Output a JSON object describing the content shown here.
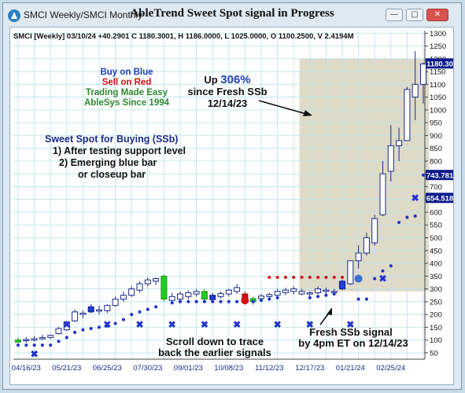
{
  "window": {
    "title": "SMCI Weekly/SMCI Monthly",
    "chart_title": "AbleTrend Sweet Spot signal in Progress",
    "icon": "app-icon",
    "controls": [
      "minimize-icon",
      "restore-icon",
      "close-icon"
    ]
  },
  "header_info": "SMCI [Weekly] 03/10/24  +40.2901  C 1180.3001, H 1186.0000, L 1025.0000, O 1100.2500, V 2.4194M",
  "legend": {
    "buy": "Buy on Blue",
    "sell": "Sell on Red",
    "tagline1": "Trading Made Easy",
    "tagline2": "AbleSys Since 1994"
  },
  "sweet_spot": {
    "title": "Sweet Spot for Buying (SSb)",
    "line1": "1) After testing support level",
    "line2": "2) Emerging blue bar",
    "line3": "or closeup bar"
  },
  "up_note": {
    "prefix": "Up ",
    "pct": "306%",
    "line2": "since Fresh SSb",
    "line3": "12/14/23"
  },
  "scroll_note": {
    "line1": "Scroll down to trace",
    "line2": "back the earlier signals"
  },
  "fresh_note": {
    "line1": "Fresh SSb signal",
    "line2": "by 4pm ET on 12/14/23"
  },
  "price_tags": [
    {
      "label": "1180.30",
      "value": 1180.3,
      "color": "#0a1a8c"
    },
    {
      "label": "743.781",
      "value": 743.781,
      "color": "#0a1a8c"
    },
    {
      "label": "654.518",
      "value": 654.518,
      "color": "#0a1a8c"
    }
  ],
  "chart_data": {
    "type": "candlestick",
    "x_labels": [
      "04/16/23",
      "05/21/23",
      "06/25/23",
      "07/30/23",
      "09/01/23",
      "10/08/23",
      "11/12/23",
      "12/17/23",
      "01/21/24",
      "02/25/24"
    ],
    "y_ticks": [
      50,
      100,
      150,
      200,
      250,
      300,
      350,
      400,
      450,
      500,
      550,
      600,
      650,
      700,
      750,
      800,
      850,
      900,
      950,
      1000,
      1050,
      1100,
      1150,
      1200,
      1250,
      1300
    ],
    "ylim": [
      25,
      1310
    ],
    "grid": true,
    "highlight_range_weeks": [
      35,
      50
    ],
    "candles": [
      {
        "o": 92,
        "h": 110,
        "l": 88,
        "c": 100,
        "col": "green"
      },
      {
        "o": 98,
        "h": 112,
        "l": 90,
        "c": 102,
        "col": "white"
      },
      {
        "o": 100,
        "h": 116,
        "l": 95,
        "c": 105,
        "col": "white"
      },
      {
        "o": 105,
        "h": 120,
        "l": 100,
        "c": 110,
        "col": "white"
      },
      {
        "o": 110,
        "h": 122,
        "l": 104,
        "c": 118,
        "col": "white"
      },
      {
        "o": 125,
        "h": 150,
        "l": 122,
        "c": 145,
        "col": "white"
      },
      {
        "o": 140,
        "h": 175,
        "l": 135,
        "c": 170,
        "col": "white"
      },
      {
        "o": 175,
        "h": 220,
        "l": 170,
        "c": 210,
        "col": "white"
      },
      {
        "o": 200,
        "h": 215,
        "l": 185,
        "c": 205,
        "col": "white"
      },
      {
        "o": 210,
        "h": 240,
        "l": 205,
        "c": 230,
        "col": "blue"
      },
      {
        "o": 215,
        "h": 235,
        "l": 200,
        "c": 218,
        "col": "white"
      },
      {
        "o": 215,
        "h": 240,
        "l": 205,
        "c": 235,
        "col": "white"
      },
      {
        "o": 235,
        "h": 270,
        "l": 230,
        "c": 260,
        "col": "white"
      },
      {
        "o": 260,
        "h": 290,
        "l": 250,
        "c": 275,
        "col": "white"
      },
      {
        "o": 275,
        "h": 310,
        "l": 268,
        "c": 300,
        "col": "white"
      },
      {
        "o": 295,
        "h": 330,
        "l": 285,
        "c": 320,
        "col": "white"
      },
      {
        "o": 320,
        "h": 345,
        "l": 310,
        "c": 335,
        "col": "white"
      },
      {
        "o": 330,
        "h": 345,
        "l": 315,
        "c": 340,
        "col": "white"
      },
      {
        "o": 350,
        "h": 355,
        "l": 250,
        "c": 260,
        "col": "green"
      },
      {
        "o": 255,
        "h": 285,
        "l": 240,
        "c": 270,
        "col": "white"
      },
      {
        "o": 260,
        "h": 290,
        "l": 250,
        "c": 280,
        "col": "white"
      },
      {
        "o": 270,
        "h": 295,
        "l": 260,
        "c": 285,
        "col": "white"
      },
      {
        "o": 280,
        "h": 300,
        "l": 270,
        "c": 290,
        "col": "white"
      },
      {
        "o": 290,
        "h": 300,
        "l": 255,
        "c": 260,
        "col": "green"
      },
      {
        "o": 258,
        "h": 285,
        "l": 245,
        "c": 275,
        "col": "blue"
      },
      {
        "o": 270,
        "h": 290,
        "l": 262,
        "c": 282,
        "col": "white"
      },
      {
        "o": 280,
        "h": 300,
        "l": 270,
        "c": 295,
        "col": "white"
      },
      {
        "o": 290,
        "h": 320,
        "l": 280,
        "c": 305,
        "col": "white"
      },
      {
        "o": 280,
        "h": 290,
        "l": 240,
        "c": 250,
        "col": "red"
      },
      {
        "o": 250,
        "h": 270,
        "l": 238,
        "c": 262,
        "col": "green"
      },
      {
        "o": 262,
        "h": 280,
        "l": 255,
        "c": 272,
        "col": "white"
      },
      {
        "o": 270,
        "h": 285,
        "l": 262,
        "c": 278,
        "col": "white"
      },
      {
        "o": 275,
        "h": 300,
        "l": 268,
        "c": 290,
        "col": "white"
      },
      {
        "o": 285,
        "h": 305,
        "l": 275,
        "c": 295,
        "col": "white"
      },
      {
        "o": 290,
        "h": 310,
        "l": 278,
        "c": 300,
        "col": "white"
      },
      {
        "o": 290,
        "h": 300,
        "l": 275,
        "c": 280,
        "col": "white"
      },
      {
        "o": 280,
        "h": 290,
        "l": 270,
        "c": 285,
        "col": "white"
      },
      {
        "o": 285,
        "h": 310,
        "l": 278,
        "c": 300,
        "col": "white"
      },
      {
        "o": 295,
        "h": 305,
        "l": 280,
        "c": 290,
        "col": "white"
      },
      {
        "o": 290,
        "h": 300,
        "l": 278,
        "c": 288,
        "col": "white"
      },
      {
        "o": 300,
        "h": 335,
        "l": 295,
        "c": 330,
        "col": "blue"
      },
      {
        "o": 320,
        "h": 410,
        "l": 315,
        "c": 410,
        "col": "white"
      },
      {
        "o": 410,
        "h": 470,
        "l": 380,
        "c": 440,
        "col": "white"
      },
      {
        "o": 440,
        "h": 520,
        "l": 430,
        "c": 500,
        "col": "white"
      },
      {
        "o": 480,
        "h": 590,
        "l": 470,
        "c": 575,
        "col": "white"
      },
      {
        "o": 590,
        "h": 800,
        "l": 585,
        "c": 750,
        "col": "white"
      },
      {
        "o": 760,
        "h": 940,
        "l": 720,
        "c": 860,
        "col": "white"
      },
      {
        "o": 860,
        "h": 930,
        "l": 800,
        "c": 880,
        "col": "white"
      },
      {
        "o": 880,
        "h": 1090,
        "l": 880,
        "c": 1080,
        "col": "white"
      },
      {
        "o": 1100,
        "h": 1230,
        "l": 960,
        "c": 1050,
        "col": "white"
      },
      {
        "o": 1100,
        "h": 1186,
        "l": 1025,
        "c": 1180,
        "col": "white"
      }
    ],
    "support_dots": [
      {
        "w": 0,
        "v": 80
      },
      {
        "w": 1,
        "v": 80
      },
      {
        "w": 2,
        "v": 80
      },
      {
        "w": 3,
        "v": 80
      },
      {
        "w": 4,
        "v": 80
      },
      {
        "w": 5,
        "v": 95
      },
      {
        "w": 6,
        "v": 110
      },
      {
        "w": 7,
        "v": 130
      },
      {
        "w": 8,
        "v": 140
      },
      {
        "w": 9,
        "v": 145
      },
      {
        "w": 10,
        "v": 150
      },
      {
        "w": 11,
        "v": 155
      },
      {
        "w": 12,
        "v": 165
      },
      {
        "w": 13,
        "v": 180
      },
      {
        "w": 14,
        "v": 200
      },
      {
        "w": 15,
        "v": 210
      },
      {
        "w": 16,
        "v": 220
      },
      {
        "w": 17,
        "v": 230
      },
      {
        "w": 19,
        "v": 245
      },
      {
        "w": 20,
        "v": 250
      },
      {
        "w": 21,
        "v": 250
      },
      {
        "w": 22,
        "v": 250
      },
      {
        "w": 23,
        "v": 250
      },
      {
        "w": 24,
        "v": 250
      },
      {
        "w": 25,
        "v": 250
      },
      {
        "w": 26,
        "v": 250
      },
      {
        "w": 27,
        "v": 250
      },
      {
        "w": 29,
        "v": 250
      },
      {
        "w": 30,
        "v": 255
      },
      {
        "w": 31,
        "v": 260
      },
      {
        "w": 32,
        "v": 265
      },
      {
        "w": 36,
        "v": 265
      },
      {
        "w": 37,
        "v": 270
      },
      {
        "w": 38,
        "v": 275
      },
      {
        "w": 39,
        "v": 280
      },
      {
        "w": 42,
        "v": 260
      },
      {
        "w": 43,
        "v": 260
      },
      {
        "w": 44,
        "v": 340
      },
      {
        "w": 45,
        "v": 370
      },
      {
        "w": 46,
        "v": 390
      },
      {
        "w": 47,
        "v": 560
      },
      {
        "w": 48,
        "v": 580
      },
      {
        "w": 49,
        "v": 585
      },
      {
        "w": 50,
        "v": 745
      }
    ],
    "resistance_dots": [
      {
        "w": 31,
        "v": 345
      },
      {
        "w": 32,
        "v": 345
      },
      {
        "w": 33,
        "v": 345
      },
      {
        "w": 34,
        "v": 345
      },
      {
        "w": 35,
        "v": 345
      },
      {
        "w": 36,
        "v": 345
      },
      {
        "w": 37,
        "v": 345
      },
      {
        "w": 38,
        "v": 345
      },
      {
        "w": 39,
        "v": 345
      },
      {
        "w": 40,
        "v": 345
      }
    ],
    "x_marks": [
      {
        "w": 2,
        "v": 45
      },
      {
        "w": 6,
        "v": 160
      },
      {
        "w": 11,
        "v": 160
      },
      {
        "w": 15,
        "v": 160
      },
      {
        "w": 19,
        "v": 160
      },
      {
        "w": 23,
        "v": 160
      },
      {
        "w": 27,
        "v": 160
      },
      {
        "w": 32,
        "v": 160
      },
      {
        "w": 36,
        "v": 160
      },
      {
        "w": 41,
        "v": 160
      },
      {
        "w": 45,
        "v": 340
      },
      {
        "w": 49,
        "v": 655
      }
    ],
    "big_dots": [
      {
        "w": 28,
        "v": 255,
        "color": "#d01010"
      },
      {
        "w": 42,
        "v": 340,
        "color": "#3b6fd1"
      }
    ]
  }
}
